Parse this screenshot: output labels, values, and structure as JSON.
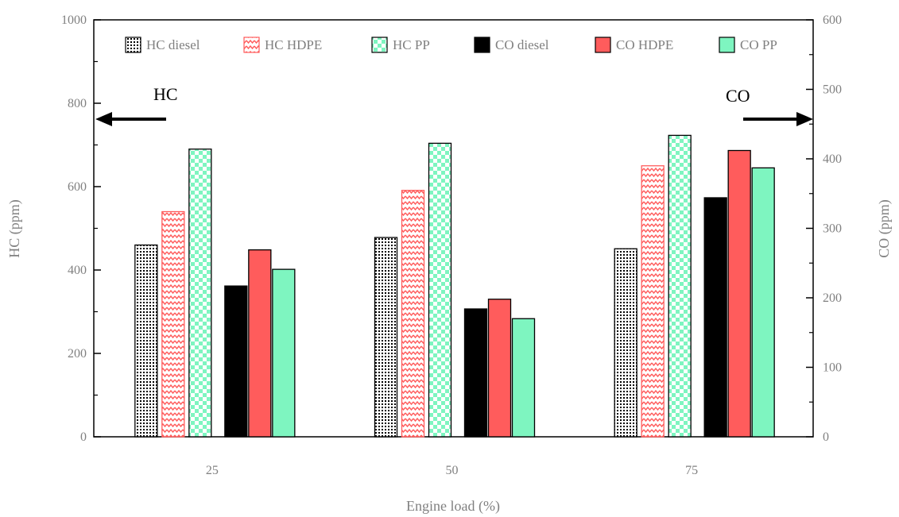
{
  "chart_data": {
    "type": "bar",
    "categories": [
      "25",
      "50",
      "75"
    ],
    "xlabel": "Engine load (%)",
    "ylabel_left": "HC (ppm)",
    "ylabel_right": "CO (ppm)",
    "ylim_left": [
      0,
      1000
    ],
    "ylim_right": [
      0,
      600
    ],
    "yticks_left": [
      "0",
      "200",
      "400",
      "600",
      "800",
      "1000"
    ],
    "yticks_right": [
      "0",
      "100",
      "200",
      "300",
      "400",
      "500",
      "600"
    ],
    "grid": false,
    "legend_position": "top",
    "series": [
      {
        "name": "HC diesel",
        "axis": "left",
        "values": [
          460,
          478,
          451
        ],
        "pattern": "dots",
        "color": "#000000"
      },
      {
        "name": "HC HDPE",
        "axis": "left",
        "values": [
          540,
          591,
          650
        ],
        "pattern": "zigzag",
        "color": "#ff5c5c"
      },
      {
        "name": "HC PP",
        "axis": "left",
        "values": [
          690,
          704,
          723
        ],
        "pattern": "checker",
        "color": "#7ef5c0"
      },
      {
        "name": "CO diesel",
        "axis": "right",
        "values": [
          217,
          184,
          344
        ],
        "pattern": "solid",
        "color": "#000000"
      },
      {
        "name": "CO HDPE",
        "axis": "right",
        "values": [
          269,
          198,
          412
        ],
        "pattern": "solid",
        "color": "#ff5c5c"
      },
      {
        "name": "CO PP",
        "axis": "right",
        "values": [
          241,
          170,
          387
        ],
        "pattern": "solid",
        "color": "#7ef5c0"
      }
    ],
    "annotations": {
      "left_arrow_label": "HC",
      "right_arrow_label": "CO"
    }
  }
}
